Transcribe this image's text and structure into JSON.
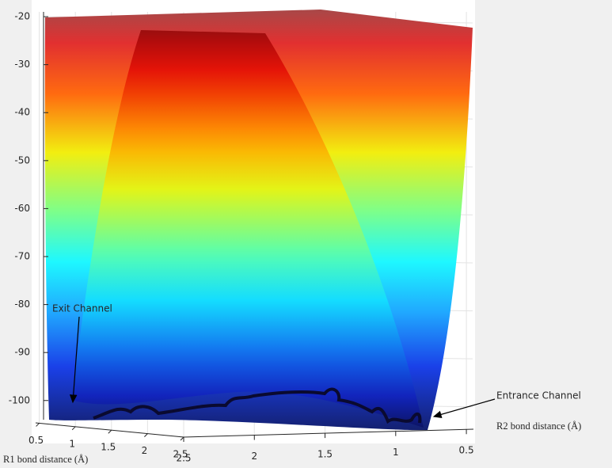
{
  "chart_data": {
    "type": "surface",
    "xlabel": "R1 bond distance (Å)",
    "xlim": [
      0.45,
      2.5
    ],
    "xticks": [
      0.5,
      1,
      1.5,
      2,
      2.5
    ],
    "ylabel": "R2 bond distance (Å)",
    "ylim": [
      0.45,
      2.5
    ],
    "yticks": [
      0.5,
      1,
      1.5,
      2,
      2.5
    ],
    "zlim": [
      -104,
      -19
    ],
    "zticks": [
      -20,
      -30,
      -40,
      -50,
      -60,
      -70,
      -80,
      -90,
      -100
    ],
    "annotations": [
      {
        "text": "Exit Channel"
      },
      {
        "text": "Entrance Channel"
      }
    ],
    "grid": true
  }
}
